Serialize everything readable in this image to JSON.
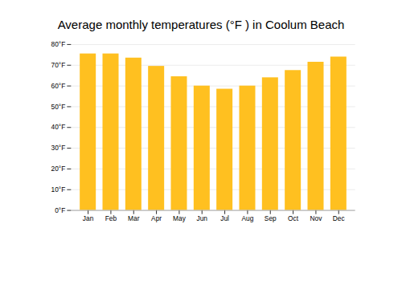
{
  "chart_data": {
    "type": "bar",
    "title": "Average monthly temperatures (°F ) in Coolum Beach",
    "categories": [
      "Jan",
      "Feb",
      "Mar",
      "Apr",
      "May",
      "Jun",
      "Jul",
      "Aug",
      "Sep",
      "Oct",
      "Nov",
      "Dec"
    ],
    "values": [
      75.5,
      75.5,
      73.5,
      69.5,
      64.5,
      60.0,
      58.5,
      60.0,
      64.0,
      67.5,
      71.5,
      74.0
    ],
    "color": "#FFC020",
    "ylim": [
      0,
      80
    ],
    "yticks": [
      {
        "value": 0,
        "label": "0°F"
      },
      {
        "value": 10,
        "label": "10°F"
      },
      {
        "value": 20,
        "label": "20°F"
      },
      {
        "value": 30,
        "label": "30°F"
      },
      {
        "value": 40,
        "label": "40°F"
      },
      {
        "value": 50,
        "label": "50°F"
      },
      {
        "value": 60,
        "label": "60°F"
      },
      {
        "value": 70,
        "label": "70°F"
      },
      {
        "value": 80,
        "label": "80°F"
      }
    ],
    "grid": true
  }
}
